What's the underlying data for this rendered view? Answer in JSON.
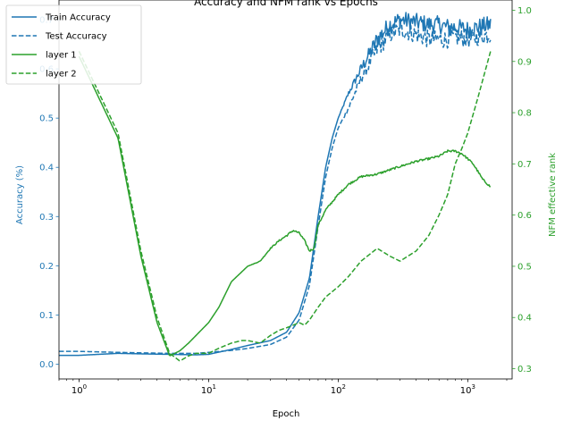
{
  "colors": {
    "accuracy": "#1f77b4",
    "rank": "#2ca02c"
  },
  "chart_data": {
    "type": "line",
    "title": "Accuracy and NFM rank vs Epochs",
    "xlabel": "Epoch",
    "ylabel_left": "Accuracy (%)",
    "ylabel_right": "NFM effective rank",
    "x_scale": "log",
    "xlim": [
      0.7,
      2200
    ],
    "ylim_left": [
      -0.03,
      0.74
    ],
    "ylim_right": [
      0.28,
      1.02
    ],
    "x_ticks": [
      {
        "value": 1,
        "base": "10",
        "exp": "0"
      },
      {
        "value": 10,
        "base": "10",
        "exp": "1"
      },
      {
        "value": 100,
        "base": "10",
        "exp": "2"
      },
      {
        "value": 1000,
        "base": "10",
        "exp": "3"
      }
    ],
    "y_ticks_left": [
      "0.0",
      "0.1",
      "0.2",
      "0.3",
      "0.4",
      "0.5",
      "0.6",
      "0.7"
    ],
    "y_ticks_right": [
      "0.3",
      "0.4",
      "0.5",
      "0.6",
      "0.7",
      "0.8",
      "0.9",
      "1.0"
    ],
    "legend_position": "upper-left",
    "grid": false,
    "series": [
      {
        "name": "Train Accuracy",
        "axis": "left",
        "style": "solid",
        "noise": 0.018,
        "noise_from": 100,
        "x": [
          0.7,
          1,
          2,
          3,
          5,
          8,
          10,
          15,
          20,
          30,
          40,
          50,
          60,
          70,
          80,
          90,
          100,
          120,
          150,
          200,
          250,
          300,
          400,
          500,
          600,
          700,
          800,
          1000,
          1200,
          1500
        ],
        "y": [
          0.018,
          0.018,
          0.022,
          0.021,
          0.02,
          0.019,
          0.02,
          0.03,
          0.038,
          0.048,
          0.065,
          0.105,
          0.175,
          0.3,
          0.4,
          0.46,
          0.5,
          0.55,
          0.6,
          0.66,
          0.69,
          0.7,
          0.695,
          0.69,
          0.69,
          0.685,
          0.685,
          0.68,
          0.685,
          0.69
        ]
      },
      {
        "name": "Test Accuracy",
        "axis": "left",
        "style": "dashed",
        "noise": 0.018,
        "noise_from": 100,
        "x": [
          0.7,
          1,
          2,
          3,
          5,
          8,
          10,
          15,
          20,
          30,
          40,
          50,
          60,
          70,
          80,
          90,
          100,
          120,
          150,
          200,
          250,
          300,
          400,
          500,
          600,
          700,
          800,
          1000,
          1200,
          1500
        ],
        "y": [
          0.026,
          0.026,
          0.024,
          0.023,
          0.022,
          0.022,
          0.024,
          0.028,
          0.032,
          0.04,
          0.055,
          0.09,
          0.16,
          0.28,
          0.38,
          0.44,
          0.48,
          0.52,
          0.58,
          0.64,
          0.67,
          0.68,
          0.67,
          0.66,
          0.66,
          0.66,
          0.665,
          0.66,
          0.665,
          0.67
        ]
      },
      {
        "name": "layer 1",
        "axis": "right",
        "style": "solid",
        "noise": 0.002,
        "noise_from": 20,
        "x": [
          1,
          2,
          3,
          4,
          5,
          6,
          7,
          8,
          10,
          12,
          15,
          20,
          25,
          30,
          35,
          40,
          45,
          50,
          55,
          60,
          65,
          70,
          80,
          100,
          120,
          150,
          200,
          300,
          400,
          500,
          600,
          700,
          800,
          900,
          1000,
          1100,
          1200,
          1300,
          1500
        ],
        "y": [
          0.91,
          0.75,
          0.52,
          0.39,
          0.325,
          0.335,
          0.35,
          0.365,
          0.39,
          0.42,
          0.47,
          0.5,
          0.51,
          0.535,
          0.55,
          0.56,
          0.57,
          0.565,
          0.55,
          0.53,
          0.535,
          0.58,
          0.61,
          0.64,
          0.66,
          0.675,
          0.68,
          0.695,
          0.705,
          0.71,
          0.715,
          0.725,
          0.725,
          0.72,
          0.71,
          0.7,
          0.685,
          0.67,
          0.655
        ]
      },
      {
        "name": "layer 2",
        "axis": "right",
        "style": "dashed",
        "noise": 0.0,
        "noise_from": 1,
        "x": [
          1,
          2,
          3,
          4,
          5,
          6,
          7,
          8,
          10,
          12,
          15,
          18,
          20,
          25,
          30,
          35,
          40,
          45,
          50,
          55,
          60,
          70,
          80,
          100,
          120,
          150,
          200,
          250,
          300,
          400,
          500,
          600,
          700,
          800,
          900,
          1000,
          1200,
          1500
        ],
        "y": [
          0.92,
          0.76,
          0.53,
          0.4,
          0.33,
          0.315,
          0.325,
          0.33,
          0.33,
          0.34,
          0.35,
          0.355,
          0.355,
          0.35,
          0.365,
          0.375,
          0.38,
          0.385,
          0.39,
          0.385,
          0.395,
          0.42,
          0.44,
          0.46,
          0.48,
          0.51,
          0.535,
          0.52,
          0.51,
          0.53,
          0.56,
          0.6,
          0.64,
          0.7,
          0.73,
          0.76,
          0.83,
          0.92
        ]
      }
    ]
  }
}
